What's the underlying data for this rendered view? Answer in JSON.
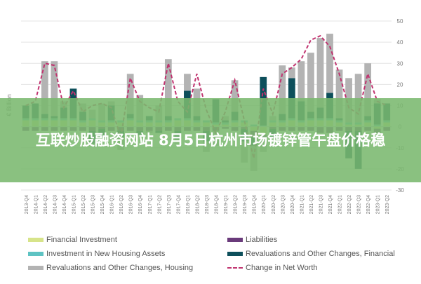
{
  "banner": {
    "text": "互联炒股融资网站 8月5日杭州市场镀锌管午盘价格稳"
  },
  "colors": {
    "financial_investment": "#d7e48a",
    "liabilities": "#6a3b7b",
    "investment_housing": "#5ec3c3",
    "revaluations_financial": "#0d4f5b",
    "revaluations_housing": "#b3b3b3",
    "change_net_worth": "#c0336f",
    "banner_bg": "#7ab86e"
  },
  "chart_data": {
    "type": "bar",
    "stacked": true,
    "ylabel": "€ Billion",
    "ylim": [
      -30,
      50
    ],
    "yticks": [
      50,
      40,
      30,
      20,
      10,
      0,
      -10,
      -20,
      -30
    ],
    "grid": true,
    "categories": [
      "2013-Q4",
      "2014-Q1",
      "2014-Q2",
      "2014-Q3",
      "2014-Q4",
      "2015-Q1",
      "2015-Q2",
      "2015-Q3",
      "2015-Q4",
      "2016-Q1",
      "2016-Q2",
      "2016-Q3",
      "2016-Q4",
      "2017-Q1",
      "2017-Q2",
      "2017-Q3",
      "2017-Q4",
      "2018-Q1",
      "2018-Q2",
      "2018-Q3",
      "2018-Q4",
      "2019-Q1",
      "2019-Q2",
      "2019-Q3",
      "2019-Q4",
      "2020-Q1",
      "2020-Q2",
      "2020-Q3",
      "2020-Q4",
      "2021-Q1",
      "2021-Q2",
      "2021-Q3",
      "2021-Q4",
      "2022-Q1",
      "2022-Q2",
      "2022-Q3",
      "2022-Q4",
      "2023-Q1",
      "2023-Q2"
    ],
    "series": [
      {
        "name": "Financial Investment",
        "values": [
          3,
          3,
          3,
          3,
          3,
          3,
          2,
          3,
          2,
          2,
          2,
          3,
          2,
          2,
          2,
          2,
          3,
          3,
          2,
          2,
          1,
          1,
          2,
          2,
          -2,
          -4,
          2,
          2,
          3,
          2,
          3,
          3,
          3,
          2,
          1,
          1,
          2,
          -1,
          2
        ]
      },
      {
        "name": "Liabilities",
        "values": [
          -2,
          -2,
          -2,
          -2,
          -2,
          -2,
          -2,
          -2,
          -1,
          -2,
          -2,
          -2,
          -2,
          -2,
          -2,
          -2,
          -2,
          -2,
          -2,
          -2,
          -2,
          -1,
          -2,
          -1,
          -3,
          -2,
          -1,
          -2,
          -2,
          -2,
          -2,
          -3,
          -3,
          -2,
          -2,
          -2,
          -2,
          -2,
          -2
        ]
      },
      {
        "name": "Investment in New Housing Assets",
        "values": [
          1,
          1,
          1,
          1,
          1,
          1,
          1,
          1,
          1,
          1,
          1,
          1,
          1,
          1,
          1,
          1,
          1,
          1,
          1,
          1,
          1,
          1,
          1,
          1,
          1,
          0.5,
          1,
          1,
          1,
          1,
          1,
          1,
          1,
          1,
          1,
          1,
          1,
          1,
          1
        ]
      },
      {
        "name": "Revaluations and Other Changes, Financial",
        "values": [
          6,
          7,
          2,
          1,
          5,
          14,
          4,
          -6,
          -4,
          7,
          -3,
          2,
          -2,
          2,
          -1,
          2,
          -4,
          13,
          2,
          -5,
          11,
          1,
          4,
          -6,
          -4,
          23,
          -4,
          3,
          19,
          9,
          3,
          5,
          12,
          1,
          -13,
          -18,
          2,
          10,
          8
        ]
      },
      {
        "name": "Revaluations and Other Changes, Housing",
        "values": [
          0,
          0,
          25,
          26,
          3,
          0,
          4,
          4,
          8,
          2,
          -6,
          19,
          12,
          -1,
          7,
          27,
          -2,
          8,
          13,
          -5,
          -7,
          2,
          15,
          -10,
          -12,
          -6,
          2,
          23,
          5,
          19,
          28,
          33,
          28,
          23,
          21,
          23,
          25,
          2,
          0
        ]
      },
      {
        "name": "Change in Net Worth",
        "type": "line",
        "values": [
          10,
          12,
          30,
          29,
          9,
          17,
          7,
          10,
          11,
          9,
          -5,
          23,
          12,
          9,
          7,
          30,
          12,
          7,
          25,
          8,
          -3,
          7,
          22,
          3,
          -15,
          18,
          6,
          25,
          28,
          32,
          41,
          43,
          38,
          25,
          9,
          6,
          25,
          12,
          10
        ]
      }
    ]
  },
  "legend": {
    "items": [
      "Financial Investment",
      "Liabilities",
      "Investment in New Housing Assets",
      "Revaluations and Other Changes, Financial",
      "Revaluations and Other Changes, Housing",
      "Change in Net Worth"
    ]
  }
}
